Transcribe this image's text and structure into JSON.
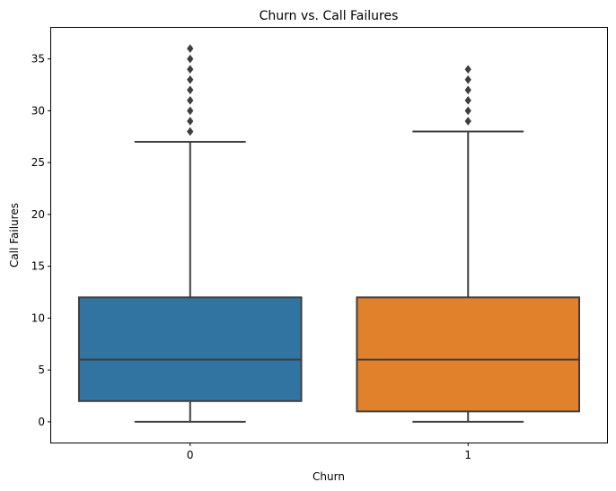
{
  "chart_data": {
    "type": "box",
    "title": "Churn vs. Call Failures",
    "xlabel": "Churn",
    "ylabel": "Call Failures",
    "categories": [
      "0",
      "1"
    ],
    "ylim": [
      -2,
      38
    ],
    "yticks": [
      0,
      5,
      10,
      15,
      20,
      25,
      30,
      35
    ],
    "grid": false,
    "legend": "none",
    "boxes": [
      {
        "category": "0",
        "whisker_low": 0,
        "q1": 2,
        "median": 6,
        "q3": 12,
        "whisker_high": 27,
        "outliers": [
          28,
          29,
          30,
          31,
          32,
          33,
          34,
          35,
          36
        ],
        "color": "#3274a1"
      },
      {
        "category": "1",
        "whisker_low": 0,
        "q1": 1,
        "median": 6,
        "q3": 12,
        "whisker_high": 28,
        "outliers": [
          29,
          30,
          31,
          32,
          33,
          34
        ],
        "color": "#e1812c"
      }
    ],
    "line_color": "#3f3f3f"
  }
}
